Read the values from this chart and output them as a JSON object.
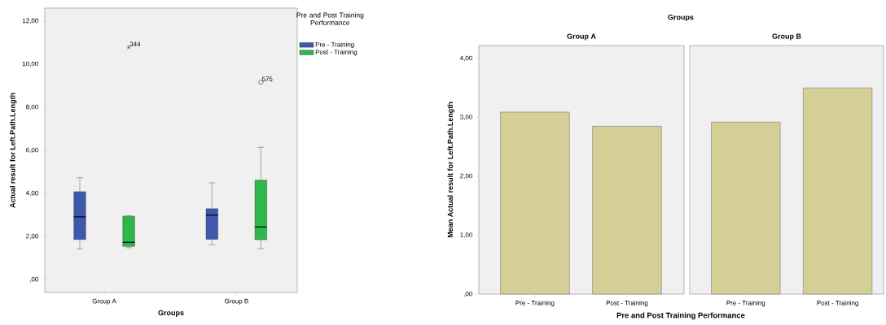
{
  "chart_data": [
    {
      "type": "box",
      "xlabel": "Groups",
      "ylabel": "Actual result for Left.Path.Length",
      "legend_title": "Pre and Post Training Performance",
      "legend": "right",
      "categories": [
        "Group A",
        "Group B"
      ],
      "series": [
        {
          "name": "Pre - Training",
          "color": "#3f57ad",
          "boxes": [
            {
              "low": 1.43,
              "q1": 1.86,
              "median": 2.91,
              "q3": 4.08,
              "high": 4.73
            },
            {
              "low": 1.62,
              "q1": 1.87,
              "median": 2.99,
              "q3": 3.29,
              "high": 4.49
            }
          ]
        },
        {
          "name": "Post - Training",
          "color": "#2eb84c",
          "boxes": [
            {
              "low": 1.48,
              "q1": 1.54,
              "median": 1.73,
              "q3": 2.94,
              "high": 2.97,
              "outliers": [
                10.78
              ]
            },
            {
              "low": 1.43,
              "q1": 1.85,
              "median": 2.44,
              "q3": 4.61,
              "high": 6.14,
              "outliers": [
                9.16
              ]
            }
          ]
        }
      ],
      "ylim": [
        -0.6,
        12.6
      ],
      "yticks": [
        {
          "value": 0,
          "label": ",00"
        },
        {
          "value": 2,
          "label": "2,00"
        },
        {
          "value": 4,
          "label": "4,00"
        },
        {
          "value": 6,
          "label": "6,00"
        },
        {
          "value": 8,
          "label": "8,00"
        },
        {
          "value": 10,
          "label": "10,00"
        },
        {
          "value": 12,
          "label": "12,00"
        }
      ],
      "annotations": [
        "344",
        "575"
      ]
    },
    {
      "type": "bar",
      "title": "Groups",
      "subtitle": "Group A",
      "xlabel": "Pre and Post Training Performance",
      "ylabel": "Mean Actual result for Left.Path.Length",
      "categories": [
        "Pre - Training",
        "Post - Training"
      ],
      "values": [
        3.09,
        2.85
      ],
      "color": "#d4cf97",
      "ylim": [
        0,
        4.22
      ],
      "yticks": [
        {
          "value": 0,
          "label": ",00"
        },
        {
          "value": 1,
          "label": "1,00"
        },
        {
          "value": 2,
          "label": "2,00"
        },
        {
          "value": 3,
          "label": "3,00"
        },
        {
          "value": 4,
          "label": "4,00"
        }
      ]
    },
    {
      "type": "bar",
      "subtitle": "Group B",
      "tick_labels": "x",
      "categories": [
        "Pre - Training",
        "Post - Training"
      ],
      "values": [
        2.92,
        3.5
      ],
      "color": "#d4cf97",
      "ylim": [
        0,
        4.22
      ]
    }
  ]
}
